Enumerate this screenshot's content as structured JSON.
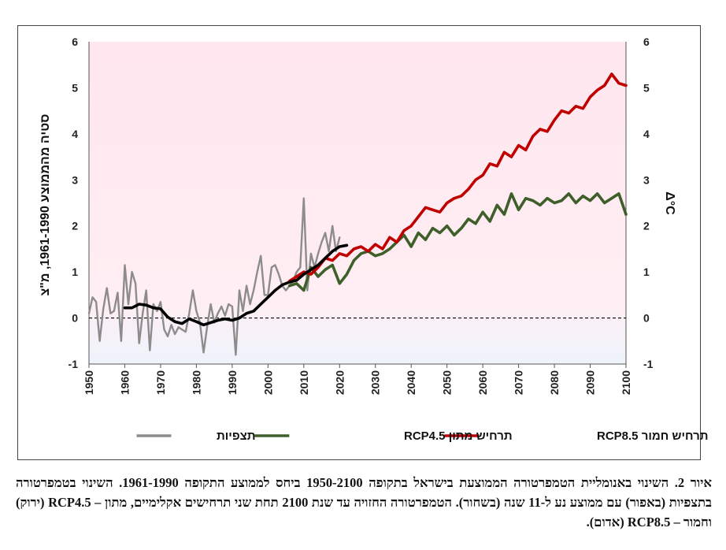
{
  "chart_data": {
    "type": "line",
    "title": "",
    "xlabel": "",
    "ylabel_left": "סטיה מהממוצע 1961-1990, מ\"צ",
    "ylabel_right": "Δ°C",
    "xlim": [
      1950,
      2100
    ],
    "ylim": [
      -1,
      6
    ],
    "x_ticks": [
      1950,
      1960,
      1970,
      1980,
      1990,
      2000,
      2010,
      2020,
      2030,
      2040,
      2050,
      2060,
      2070,
      2080,
      2090,
      2100
    ],
    "y_ticks": [
      -1,
      0,
      1,
      2,
      3,
      4,
      5,
      6
    ],
    "grid": "vertical pink stripes per year, red-to-light-blue gradient",
    "zero_line": "dashed black at 0",
    "legend_position": "bottom",
    "colors": {
      "observations": "#8c8c8c",
      "smoothed": "#000000",
      "rcp45": "#3f5f2a",
      "rcp85": "#c00000",
      "stripe_top": "#d60057",
      "stripe_bottom": "#9fb8e6"
    },
    "series": [
      {
        "name": "תצפיות",
        "key": "observations",
        "x": [
          1950,
          1951,
          1952,
          1953,
          1954,
          1955,
          1956,
          1957,
          1958,
          1959,
          1960,
          1961,
          1962,
          1963,
          1964,
          1965,
          1966,
          1967,
          1968,
          1969,
          1970,
          1971,
          1972,
          1973,
          1974,
          1975,
          1976,
          1977,
          1978,
          1979,
          1980,
          1981,
          1982,
          1983,
          1984,
          1985,
          1986,
          1987,
          1988,
          1989,
          1990,
          1991,
          1992,
          1993,
          1994,
          1995,
          1996,
          1997,
          1998,
          1999,
          2000,
          2001,
          2002,
          2003,
          2004,
          2005,
          2006,
          2007,
          2008,
          2009,
          2010,
          2011,
          2012,
          2013,
          2014,
          2015,
          2016,
          2017,
          2018,
          2019,
          2020
        ],
        "values": [
          0.1,
          0.45,
          0.35,
          -0.5,
          0.2,
          0.65,
          0.1,
          0.15,
          0.55,
          -0.5,
          1.15,
          0.3,
          1.0,
          0.75,
          -0.55,
          0.1,
          0.6,
          -0.7,
          0.3,
          0.15,
          0.35,
          -0.25,
          -0.4,
          -0.15,
          -0.35,
          -0.2,
          -0.25,
          -0.3,
          0.1,
          0.6,
          0.15,
          -0.1,
          -0.75,
          -0.2,
          0.3,
          -0.1,
          0.1,
          0.25,
          0.05,
          0.3,
          0.25,
          -0.8,
          0.6,
          0.15,
          0.7,
          0.3,
          0.6,
          1.0,
          1.35,
          0.5,
          0.5,
          1.1,
          1.15,
          0.95,
          0.7,
          0.6,
          0.7,
          0.8,
          1.0,
          1.1,
          2.6,
          0.6,
          1.4,
          1.1,
          1.4,
          1.65,
          1.85,
          1.45,
          2.0,
          1.45,
          1.75
        ]
      },
      {
        "name": "",
        "key": "smoothed",
        "x": [
          1960,
          1962,
          1964,
          1966,
          1968,
          1970,
          1972,
          1974,
          1976,
          1978,
          1980,
          1982,
          1984,
          1986,
          1988,
          1990,
          1992,
          1994,
          1996,
          1998,
          2000,
          2002,
          2004,
          2006,
          2008,
          2010,
          2012,
          2014,
          2016,
          2018,
          2020,
          2022
        ],
        "values": [
          0.22,
          0.22,
          0.3,
          0.28,
          0.22,
          0.2,
          0.02,
          -0.08,
          -0.12,
          -0.02,
          -0.08,
          -0.15,
          -0.1,
          -0.05,
          -0.02,
          -0.05,
          0.0,
          0.1,
          0.15,
          0.3,
          0.45,
          0.6,
          0.72,
          0.78,
          0.82,
          0.95,
          1.05,
          1.15,
          1.3,
          1.45,
          1.55,
          1.58
        ]
      },
      {
        "name": "תרחיש מתון RCP4.5",
        "key": "rcp45",
        "x": [
          2006,
          2008,
          2010,
          2012,
          2014,
          2016,
          2018,
          2020,
          2022,
          2024,
          2026,
          2028,
          2030,
          2032,
          2034,
          2036,
          2038,
          2040,
          2042,
          2044,
          2046,
          2048,
          2050,
          2052,
          2054,
          2056,
          2058,
          2060,
          2062,
          2064,
          2066,
          2068,
          2070,
          2072,
          2074,
          2076,
          2078,
          2080,
          2082,
          2084,
          2086,
          2088,
          2090,
          2092,
          2094,
          2096,
          2098,
          2100
        ],
        "values": [
          0.7,
          0.75,
          0.6,
          1.1,
          0.9,
          1.05,
          1.15,
          0.75,
          0.95,
          1.25,
          1.4,
          1.45,
          1.35,
          1.4,
          1.5,
          1.65,
          1.8,
          1.55,
          1.85,
          1.7,
          1.95,
          1.85,
          2.0,
          1.8,
          1.95,
          2.15,
          2.05,
          2.3,
          2.1,
          2.45,
          2.25,
          2.7,
          2.35,
          2.6,
          2.55,
          2.45,
          2.6,
          2.5,
          2.55,
          2.7,
          2.5,
          2.65,
          2.55,
          2.7,
          2.5,
          2.6,
          2.7,
          2.25
        ]
      },
      {
        "name": "תרחיש חמור RCP8.5",
        "key": "rcp85",
        "x": [
          2006,
          2008,
          2010,
          2012,
          2014,
          2016,
          2018,
          2020,
          2022,
          2024,
          2026,
          2028,
          2030,
          2032,
          2034,
          2036,
          2038,
          2040,
          2042,
          2044,
          2046,
          2048,
          2050,
          2052,
          2054,
          2056,
          2058,
          2060,
          2062,
          2064,
          2066,
          2068,
          2070,
          2072,
          2074,
          2076,
          2078,
          2080,
          2082,
          2084,
          2086,
          2088,
          2090,
          2092,
          2094,
          2096,
          2098,
          2100
        ],
        "values": [
          0.8,
          0.9,
          1.0,
          0.95,
          1.1,
          1.3,
          1.25,
          1.4,
          1.35,
          1.5,
          1.55,
          1.45,
          1.6,
          1.5,
          1.75,
          1.65,
          1.9,
          2.0,
          2.2,
          2.4,
          2.35,
          2.3,
          2.5,
          2.6,
          2.65,
          2.8,
          3.0,
          3.1,
          3.35,
          3.3,
          3.6,
          3.5,
          3.75,
          3.65,
          3.95,
          4.1,
          4.05,
          4.3,
          4.5,
          4.45,
          4.6,
          4.55,
          4.8,
          4.95,
          5.05,
          5.3,
          5.1,
          5.05
        ]
      }
    ]
  },
  "legend": [
    {
      "key": "rcp85",
      "label": "תרחיש חמור RCP8.5"
    },
    {
      "key": "rcp45",
      "label": "תרחיש מתון RCP4.5"
    },
    {
      "key": "observations",
      "label": "תצפיות"
    }
  ],
  "caption": "איור 2. השינוי באנומליית הטמפרטורה הממוצעת בישראל בתקופה 1950-2100 ביחס לממוצע התקופה 1961-1990. השינוי בטמפרטורה בתצפיות (באפור) עם ממוצע נע ל-11 שנה (בשחור). הטמפרטורה החזויה עד שנת 2100 תחת שני תרחישים אקלימיים, מתון – RCP4.5 (ירוק) וחמור – RCP8.5 (אדום)."
}
